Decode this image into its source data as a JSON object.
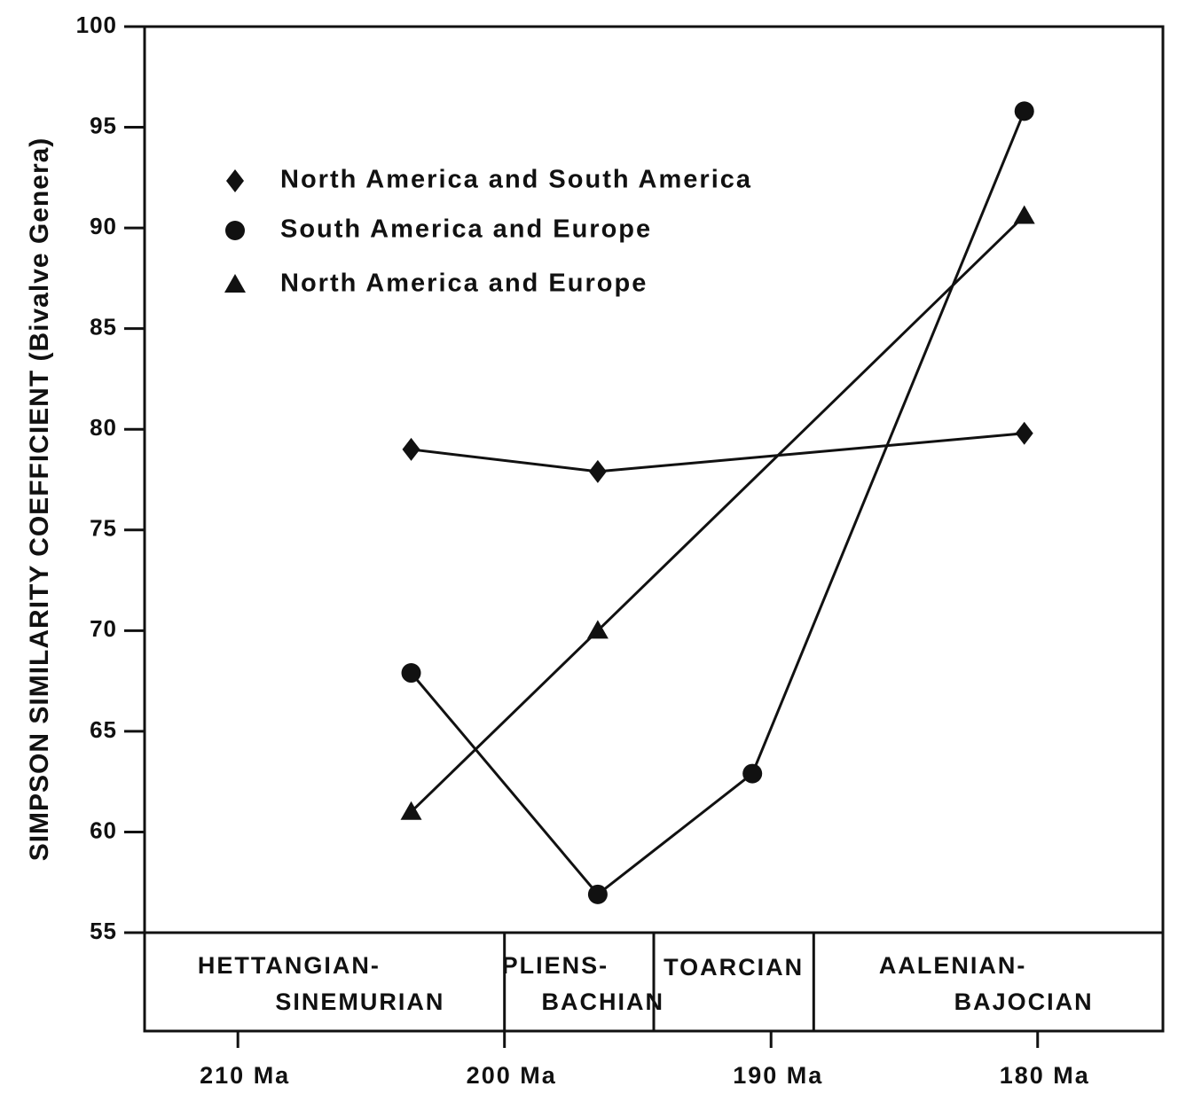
{
  "chart_data": {
    "type": "line",
    "ylabel": "SIMPSON SIMILARITY COEFFICIENT (Bivalve Genera)",
    "ylim": [
      55,
      100
    ],
    "yticks": [
      55,
      60,
      65,
      70,
      75,
      80,
      85,
      90,
      95,
      100
    ],
    "xlim": [
      213.5,
      175.3
    ],
    "xticks": [
      {
        "value": 210,
        "label": "210 Ma"
      },
      {
        "value": 200,
        "label": "200 Ma"
      },
      {
        "value": 190,
        "label": "190 Ma"
      },
      {
        "value": 180,
        "label": "180 Ma"
      }
    ],
    "stages": [
      {
        "lines": [
          "HETTANGIAN-",
          "SINEMURIAN"
        ],
        "start": 213.5,
        "end": 200.0
      },
      {
        "lines": [
          "PLIENS-",
          "BACHIAN"
        ],
        "start": 200.0,
        "end": 194.4
      },
      {
        "lines": [
          "TOARCIAN"
        ],
        "start": 194.4,
        "end": 188.4
      },
      {
        "lines": [
          "AALENIAN-",
          "BAJOCIAN"
        ],
        "start": 188.4,
        "end": 175.3
      }
    ],
    "legend_position": "top-left",
    "series": [
      {
        "name": "North America and South America",
        "marker": "diamond",
        "points": [
          {
            "x": 203.5,
            "y": 79
          },
          {
            "x": 196.5,
            "y": 77.9
          },
          {
            "x": 180.5,
            "y": 79.8
          }
        ]
      },
      {
        "name": "South America and Europe",
        "marker": "circle",
        "points": [
          {
            "x": 203.5,
            "y": 67.9
          },
          {
            "x": 196.5,
            "y": 56.9
          },
          {
            "x": 190.7,
            "y": 62.9
          },
          {
            "x": 180.5,
            "y": 95.8
          }
        ]
      },
      {
        "name": "North America and Europe",
        "marker": "triangle",
        "points": [
          {
            "x": 203.5,
            "y": 61
          },
          {
            "x": 196.5,
            "y": 70
          },
          {
            "x": 180.5,
            "y": 90.6
          }
        ]
      }
    ]
  }
}
